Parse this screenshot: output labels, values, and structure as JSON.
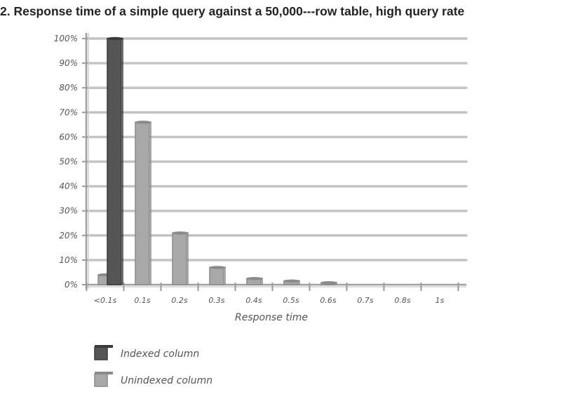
{
  "chart_data": {
    "type": "bar",
    "title": "2. Response time of a simple query against a 50,000---row table, high query rate",
    "xlabel": "Response time",
    "ylabel": "",
    "categories": [
      "<0.1s",
      "0.1s",
      "0.2s",
      "0.3s",
      "0.4s",
      "0.5s",
      "0.6s",
      "0.7s",
      "0.8s",
      "1s"
    ],
    "y_tick_labels": [
      "0%",
      "10%",
      "20%",
      "30%",
      "40%",
      "50%",
      "60%",
      "70%",
      "80%",
      "90%",
      "100%"
    ],
    "ylim": [
      0,
      100
    ],
    "grid": true,
    "legend_position": "bottom-left",
    "series": [
      {
        "name": "Indexed column",
        "color": "#555555",
        "values": [
          100,
          0,
          0,
          0,
          0,
          0,
          0,
          0,
          0,
          0
        ]
      },
      {
        "name": "Unindexed column",
        "color": "#a8a8a8",
        "values": [
          4,
          66,
          21,
          7,
          2.5,
          1.5,
          0.8,
          0,
          0,
          0
        ]
      }
    ]
  }
}
